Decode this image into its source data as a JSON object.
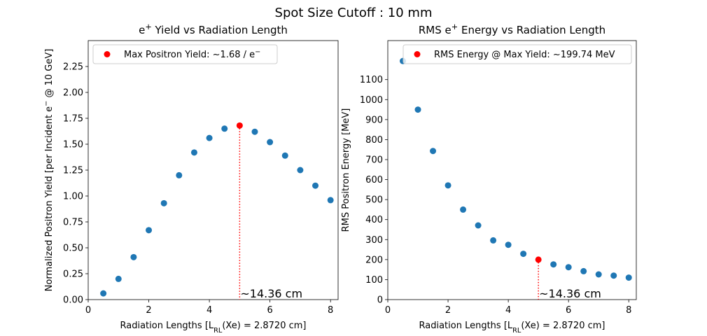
{
  "figure": {
    "suptitle": "Spot Size Cutoff : 10 mm"
  },
  "colors": {
    "series": "#1f77b4",
    "highlight": "#ff0000",
    "axes": "#000000",
    "legend_border": "#cccccc"
  },
  "chart_data": [
    {
      "type": "scatter",
      "title": "e⁺ Yield vs Radiation Length",
      "xlabel": "Radiation Lengths [L_RL(Xe) = 2.8720 cm]",
      "ylabel": "Normalized Positron Yield [per Incident e⁻ @ 10 GeV]",
      "xlim": [
        0,
        8.25
      ],
      "ylim": [
        0,
        2.5
      ],
      "xticks": [
        0,
        2,
        4,
        6,
        8
      ],
      "yticks": [
        0.0,
        0.25,
        0.5,
        0.75,
        1.0,
        1.25,
        1.5,
        1.75,
        2.0,
        2.25
      ],
      "ytick_labels": [
        "0.00",
        "0.25",
        "0.50",
        "0.75",
        "1.00",
        "1.25",
        "1.50",
        "1.75",
        "2.00",
        "2.25"
      ],
      "series": [
        {
          "x": [
            0.5,
            1.0,
            1.5,
            2.0,
            2.5,
            3.0,
            3.5,
            4.0,
            4.5,
            5.5,
            6.0,
            6.5,
            7.0,
            7.5,
            8.0
          ],
          "y": [
            0.06,
            0.2,
            0.41,
            0.67,
            0.93,
            1.2,
            1.42,
            1.56,
            1.65,
            1.62,
            1.52,
            1.39,
            1.25,
            1.1,
            0.96
          ]
        }
      ],
      "highlight": {
        "x": 5.0,
        "y": 1.68,
        "legend_label": "Max Positron Yield: ~1.68 / e⁻",
        "annotation": "~14.36 cm"
      },
      "legend_position": "upper-left",
      "grid": false
    },
    {
      "type": "scatter",
      "title": "RMS e⁺ Energy vs Radiation Length",
      "xlabel": "Radiation Lengths [L_RL(Xe) = 2.8720 cm]",
      "ylabel": "RMS Positron Energy [MeV]",
      "xlim": [
        0,
        8.25
      ],
      "ylim": [
        0,
        1295
      ],
      "xticks": [
        0,
        2,
        4,
        6,
        8
      ],
      "yticks": [
        0,
        100,
        200,
        300,
        400,
        500,
        600,
        700,
        800,
        900,
        1000,
        1100
      ],
      "ytick_labels": [
        "0",
        "100",
        "200",
        "300",
        "400",
        "500",
        "600",
        "700",
        "800",
        "900",
        "1000",
        "1100"
      ],
      "series": [
        {
          "x": [
            0.5,
            1.0,
            1.5,
            2.0,
            2.5,
            3.0,
            3.5,
            4.0,
            4.5,
            5.5,
            6.0,
            6.5,
            7.0,
            7.5,
            8.0
          ],
          "y": [
            1193,
            950,
            743,
            571,
            450,
            371,
            296,
            274,
            229,
            176,
            162,
            142,
            126,
            120,
            110
          ]
        }
      ],
      "highlight": {
        "x": 5.0,
        "y": 199.74,
        "legend_label": "RMS Energy @ Max Yield: ~199.74 MeV",
        "annotation": "~14.36 cm"
      },
      "legend_position": "upper-right",
      "grid": false
    }
  ]
}
